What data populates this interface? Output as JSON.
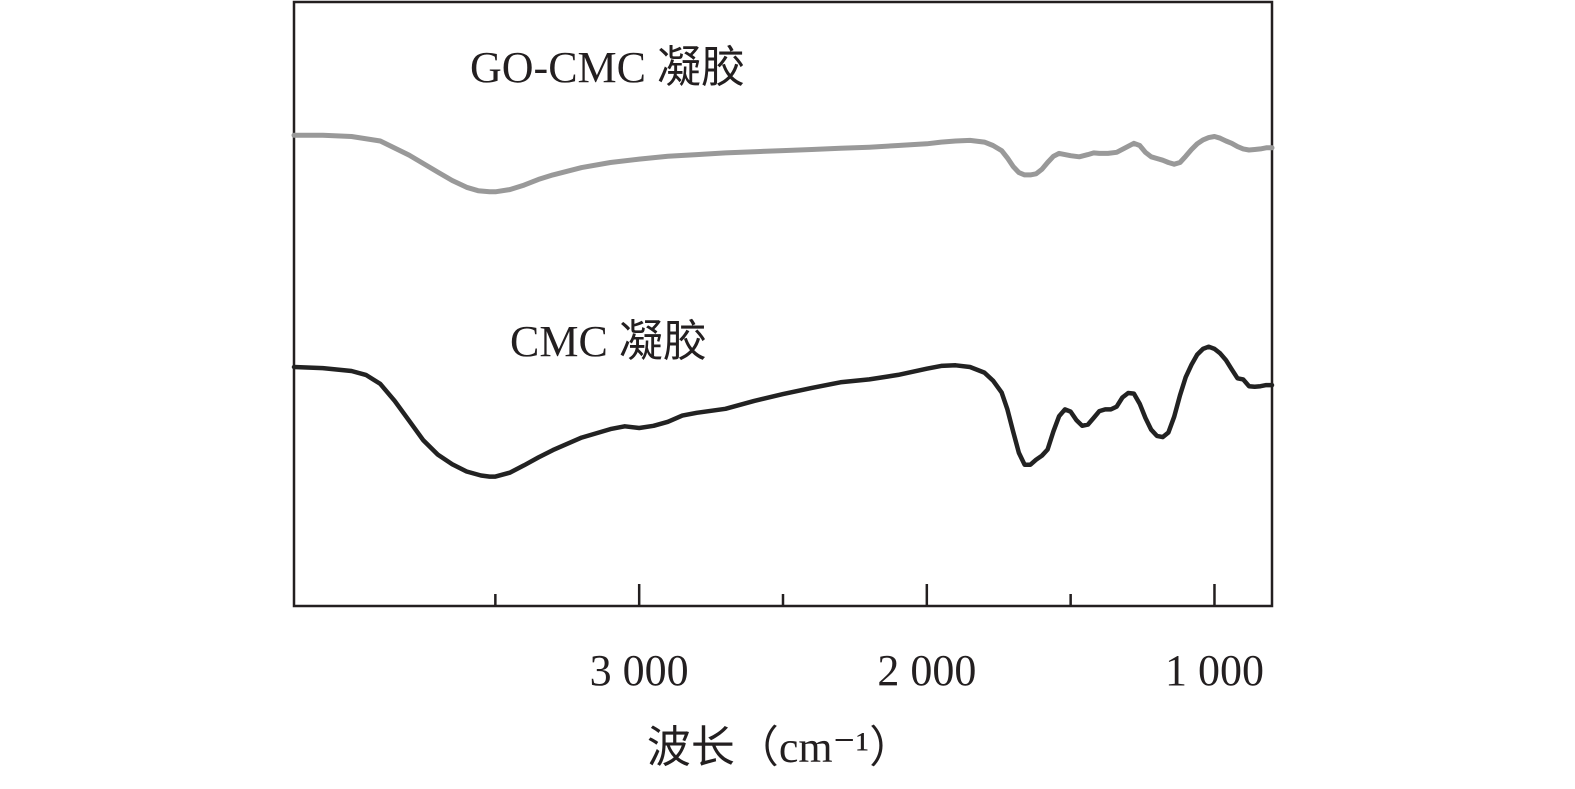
{
  "chart_data": {
    "type": "line",
    "xlabel": "波长（cm⁻¹）",
    "ylabel": "",
    "xlim": [
      4200,
      800
    ],
    "x_reversed": true,
    "y_ticks": false,
    "grid": false,
    "x_ticks": [
      3000,
      2000,
      1000
    ],
    "x_tick_labels": [
      "3 000",
      "2 000",
      "1 000"
    ],
    "x_minor_ticks": [
      3500,
      2500,
      1500
    ],
    "series": [
      {
        "name": "GO-CMC 凝胶",
        "color": "#999999",
        "x": [
          4200,
          4100,
          4000,
          3900,
          3800,
          3700,
          3650,
          3600,
          3560,
          3520,
          3500,
          3450,
          3400,
          3350,
          3300,
          3200,
          3100,
          3000,
          2900,
          2800,
          2700,
          2600,
          2500,
          2400,
          2300,
          2200,
          2100,
          2000,
          1950,
          1900,
          1850,
          1800,
          1770,
          1740,
          1720,
          1700,
          1680,
          1660,
          1640,
          1620,
          1600,
          1580,
          1560,
          1540,
          1520,
          1500,
          1470,
          1440,
          1420,
          1400,
          1370,
          1340,
          1310,
          1280,
          1260,
          1240,
          1220,
          1200,
          1180,
          1160,
          1140,
          1120,
          1100,
          1080,
          1060,
          1040,
          1020,
          1000,
          980,
          960,
          940,
          920,
          900,
          880,
          860,
          840,
          820,
          800
        ],
        "y": [
          61.0,
          61.0,
          60.8,
          60.0,
          57.5,
          54.5,
          53.0,
          51.8,
          51.2,
          51.0,
          51.0,
          51.4,
          52.2,
          53.2,
          54.0,
          55.3,
          56.2,
          56.8,
          57.3,
          57.6,
          57.9,
          58.1,
          58.3,
          58.5,
          58.7,
          58.9,
          59.2,
          59.5,
          59.8,
          60.0,
          60.1,
          59.8,
          59.2,
          58.3,
          57.0,
          55.5,
          54.4,
          54.0,
          54.0,
          54.2,
          55.0,
          56.2,
          57.3,
          57.8,
          57.6,
          57.4,
          57.2,
          57.6,
          57.9,
          57.8,
          57.8,
          58.0,
          58.8,
          59.6,
          59.2,
          58.0,
          57.2,
          56.9,
          56.6,
          56.2,
          55.9,
          56.2,
          57.3,
          58.5,
          59.5,
          60.2,
          60.6,
          60.8,
          60.5,
          60.0,
          59.6,
          59.0,
          58.6,
          58.4,
          58.5,
          58.6,
          58.8,
          58.8
        ]
      },
      {
        "name": "CMC 凝胶",
        "color": "#222222",
        "x": [
          4200,
          4100,
          4000,
          3950,
          3900,
          3850,
          3800,
          3750,
          3700,
          3650,
          3600,
          3550,
          3520,
          3500,
          3450,
          3400,
          3350,
          3300,
          3200,
          3100,
          3050,
          3000,
          2950,
          2900,
          2850,
          2800,
          2700,
          2600,
          2500,
          2400,
          2300,
          2200,
          2100,
          2000,
          1950,
          1900,
          1850,
          1800,
          1770,
          1740,
          1720,
          1700,
          1680,
          1660,
          1640,
          1620,
          1600,
          1580,
          1560,
          1540,
          1520,
          1500,
          1480,
          1460,
          1440,
          1420,
          1400,
          1380,
          1360,
          1340,
          1320,
          1300,
          1280,
          1260,
          1240,
          1220,
          1200,
          1180,
          1160,
          1140,
          1120,
          1100,
          1080,
          1060,
          1040,
          1020,
          1000,
          980,
          960,
          940,
          920,
          900,
          880,
          860,
          840,
          820,
          800
        ],
        "y": [
          20.0,
          19.8,
          19.3,
          18.6,
          17.0,
          14.0,
          10.5,
          7.0,
          4.5,
          2.8,
          1.5,
          0.8,
          0.6,
          0.6,
          1.3,
          2.6,
          4.0,
          5.3,
          7.5,
          9.0,
          9.5,
          9.2,
          9.6,
          10.3,
          11.4,
          11.9,
          12.6,
          14.0,
          15.2,
          16.3,
          17.3,
          17.8,
          18.6,
          19.7,
          20.2,
          20.3,
          20.0,
          19.0,
          17.6,
          15.5,
          12.5,
          8.6,
          4.8,
          2.7,
          2.7,
          3.6,
          4.3,
          5.4,
          8.6,
          11.3,
          12.5,
          12.1,
          10.6,
          9.6,
          9.8,
          11.0,
          12.2,
          12.5,
          12.5,
          13.0,
          14.6,
          15.4,
          15.3,
          13.5,
          11.0,
          8.9,
          7.8,
          7.6,
          8.4,
          11.2,
          15.0,
          18.2,
          20.4,
          22.2,
          23.2,
          23.6,
          23.2,
          22.4,
          21.2,
          19.6,
          18.0,
          17.8,
          16.6,
          16.5,
          16.6,
          16.8,
          16.8
        ]
      }
    ]
  }
}
